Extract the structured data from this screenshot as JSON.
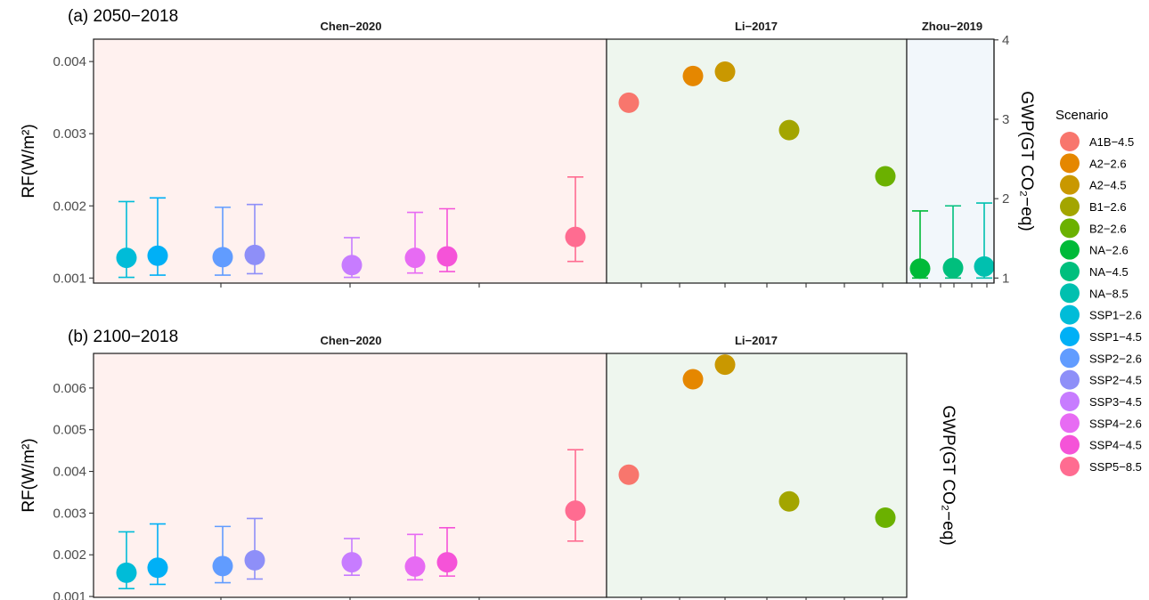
{
  "chart_data": {
    "type": "scatter",
    "legend": {
      "title": "Scenario",
      "position": "right",
      "items": [
        {
          "name": "A1B−4.5",
          "color": "#F8766D"
        },
        {
          "name": "A2−2.6",
          "color": "#E58700"
        },
        {
          "name": "A2−4.5",
          "color": "#C99800"
        },
        {
          "name": "B1−2.6",
          "color": "#A3A500"
        },
        {
          "name": "B2−2.6",
          "color": "#6BB100"
        },
        {
          "name": "NA−2.6",
          "color": "#00BA38"
        },
        {
          "name": "NA−4.5",
          "color": "#00BF7D"
        },
        {
          "name": "NA−8.5",
          "color": "#00C0AF"
        },
        {
          "name": "SSP1−2.6",
          "color": "#00BCD8"
        },
        {
          "name": "SSP1−4.5",
          "color": "#00B0F6"
        },
        {
          "name": "SSP2−2.6",
          "color": "#619CFF"
        },
        {
          "name": "SSP2−4.5",
          "color": "#8E8FF8"
        },
        {
          "name": "SSP3−4.5",
          "color": "#C77CFF"
        },
        {
          "name": "SSP4−2.6",
          "color": "#E76BF3"
        },
        {
          "name": "SSP4−4.5",
          "color": "#F553D8"
        },
        {
          "name": "SSP5−8.5",
          "color": "#FF6C91"
        }
      ]
    },
    "panels": [
      {
        "title": "(a) 2050−2018",
        "ylabel": "RF(W/m²)",
        "ylabel_secondary": "GWP(GT CO₂−eq)",
        "ylim": [
          0.00093,
          0.00431
        ],
        "yticks": [
          0.001,
          0.002,
          0.003,
          0.004
        ],
        "ytick_labels": [
          "0.001",
          "0.002",
          "0.003",
          "0.004"
        ],
        "secondary_ticks": [
          {
            "value": 0.001,
            "label": "1"
          },
          {
            "value": 0.0021,
            "label": "2"
          },
          {
            "value": 0.0032,
            "label": "3"
          },
          {
            "value": 0.0043,
            "label": "4"
          }
        ],
        "grid": false,
        "facets": [
          {
            "label": "Chen−2020",
            "color": "#fff1ef",
            "points": [
              {
                "scenario": "SSP1−2.6",
                "y": 0.00128,
                "ymin": 0.00101,
                "ymax": 0.00206
              },
              {
                "scenario": "SSP1−4.5",
                "y": 0.00131,
                "ymin": 0.00104,
                "ymax": 0.00211
              },
              {
                "scenario": "SSP2−2.6",
                "y": 0.00129,
                "ymin": 0.00104,
                "ymax": 0.00198
              },
              {
                "scenario": "SSP2−4.5",
                "y": 0.00132,
                "ymin": 0.00106,
                "ymax": 0.00202
              },
              {
                "scenario": "SSP3−4.5",
                "y": 0.00118,
                "ymin": 0.00101,
                "ymax": 0.00156
              },
              {
                "scenario": "SSP4−2.6",
                "y": 0.00128,
                "ymin": 0.00107,
                "ymax": 0.00191
              },
              {
                "scenario": "SSP4−4.5",
                "y": 0.0013,
                "ymin": 0.00109,
                "ymax": 0.00196
              },
              {
                "scenario": "SSP5−8.5",
                "y": 0.00157,
                "ymin": 0.00123,
                "ymax": 0.0024
              }
            ]
          },
          {
            "label": "Li−2017",
            "color": "#eef6ee",
            "points": [
              {
                "scenario": "A1B−4.5",
                "y": 0.00343
              },
              {
                "scenario": "A2−2.6",
                "y": 0.0038
              },
              {
                "scenario": "A2−4.5",
                "y": 0.00386
              },
              {
                "scenario": "B1−2.6",
                "y": 0.00305
              },
              {
                "scenario": "B2−2.6",
                "y": 0.00241
              }
            ]
          },
          {
            "label": "Zhou−2019",
            "color": "#f2f7fb",
            "points": [
              {
                "scenario": "NA−2.6",
                "y": 0.00113,
                "ymin": 0.001,
                "ymax": 0.00193
              },
              {
                "scenario": "NA−4.5",
                "y": 0.00114,
                "ymin": 0.001,
                "ymax": 0.002
              },
              {
                "scenario": "NA−8.5",
                "y": 0.00116,
                "ymin": 0.001,
                "ymax": 0.00204
              }
            ]
          }
        ]
      },
      {
        "title": "(b) 2100−2018",
        "ylabel": "RF(W/m²)",
        "ylabel_secondary": "GWP(GT CO₂−eq)",
        "ylim": [
          0.00098,
          0.00683
        ],
        "yticks": [
          0.001,
          0.002,
          0.003,
          0.004,
          0.005,
          0.006
        ],
        "ytick_labels": [
          "0.001",
          "0.002",
          "0.003",
          "0.004",
          "0.005",
          "0.006"
        ],
        "grid": false,
        "facets": [
          {
            "label": "Chen−2020",
            "color": "#fff1ef",
            "points": [
              {
                "scenario": "SSP1−2.6",
                "y": 0.00157,
                "ymin": 0.00119,
                "ymax": 0.00255
              },
              {
                "scenario": "SSP1−4.5",
                "y": 0.00169,
                "ymin": 0.00129,
                "ymax": 0.00274
              },
              {
                "scenario": "SSP2−2.6",
                "y": 0.00173,
                "ymin": 0.00133,
                "ymax": 0.00268
              },
              {
                "scenario": "SSP2−4.5",
                "y": 0.00187,
                "ymin": 0.00142,
                "ymax": 0.00287
              },
              {
                "scenario": "SSP3−4.5",
                "y": 0.00182,
                "ymin": 0.00151,
                "ymax": 0.00239
              },
              {
                "scenario": "SSP4−2.6",
                "y": 0.00172,
                "ymin": 0.0014,
                "ymax": 0.00249
              },
              {
                "scenario": "SSP4−4.5",
                "y": 0.00182,
                "ymin": 0.00149,
                "ymax": 0.00265
              },
              {
                "scenario": "SSP5−8.5",
                "y": 0.00306,
                "ymin": 0.00233,
                "ymax": 0.00452
              }
            ]
          },
          {
            "label": "Li−2017",
            "color": "#eef6ee",
            "points": [
              {
                "scenario": "A1B−4.5",
                "y": 0.00392
              },
              {
                "scenario": "A2−2.6",
                "y": 0.00621
              },
              {
                "scenario": "A2−4.5",
                "y": 0.00656
              },
              {
                "scenario": "B1−2.6",
                "y": 0.00328
              },
              {
                "scenario": "B2−2.6",
                "y": 0.00289
              }
            ]
          }
        ]
      }
    ]
  }
}
